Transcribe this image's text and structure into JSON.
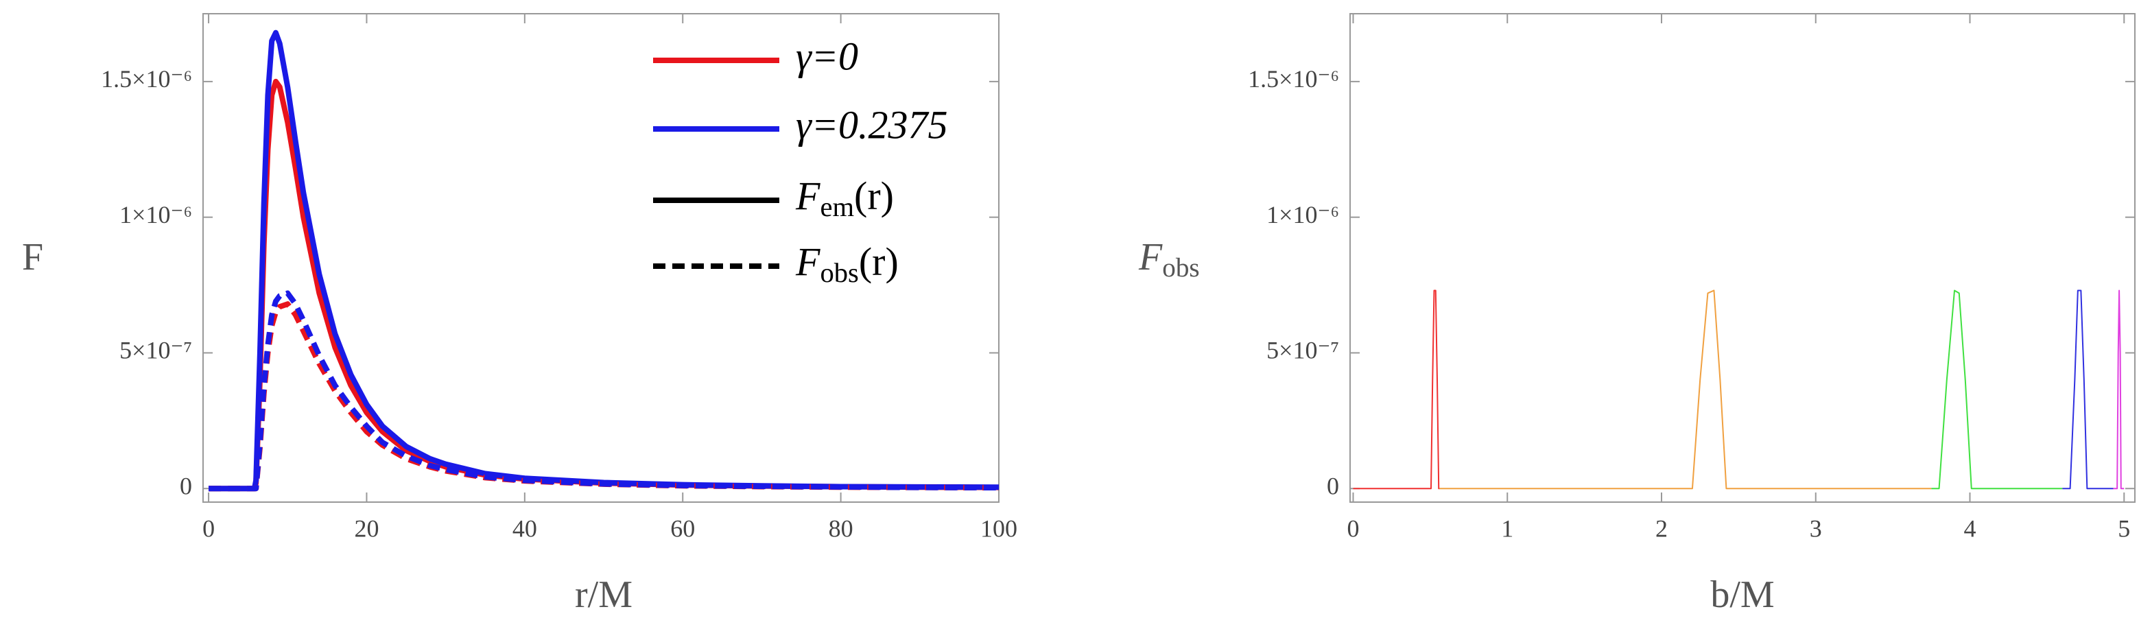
{
  "chart_data": [
    {
      "type": "line",
      "ylabel": "F",
      "xlabel": "r/M",
      "xlim": [
        -0.7,
        100
      ],
      "xticks": [
        0,
        20,
        40,
        60,
        80,
        100
      ],
      "ylim": [
        -5e-08,
        1.75e-06
      ],
      "yticks": [
        0,
        {
          "value": 5e-07,
          "label": "5×10⁻⁷"
        },
        {
          "value": 1e-06,
          "label": "1×10⁻⁶"
        },
        {
          "value": 1.5e-06,
          "label": "1.5×10⁻⁶"
        }
      ],
      "x": [
        0,
        5,
        5.8,
        6,
        6.5,
        7,
        7.5,
        8,
        8.5,
        9,
        10,
        11,
        12,
        14,
        16,
        18,
        20,
        22,
        25,
        28,
        30,
        35,
        40,
        50,
        60,
        70,
        80,
        90,
        100
      ],
      "series": [
        {
          "color": "#e8141c",
          "dash": false,
          "values": [
            0,
            0,
            0,
            2e-08,
            4e-07,
            9e-07,
            1.25e-06,
            1.45e-06,
            1.5e-06,
            1.48e-06,
            1.35e-06,
            1.18e-06,
            1e-06,
            7.2e-07,
            5.2e-07,
            3.8e-07,
            2.8e-07,
            2.1e-07,
            1.4e-07,
            1e-07,
            8e-08,
            5e-08,
            3.5e-08,
            2e-08,
            1.3e-08,
            9e-09,
            7e-09,
            5e-09,
            4e-09
          ]
        },
        {
          "color": "#1a1ae6",
          "dash": false,
          "values": [
            0,
            0,
            0,
            3e-08,
            5e-07,
            1.05e-06,
            1.45e-06,
            1.65e-06,
            1.68e-06,
            1.64e-06,
            1.48e-06,
            1.28e-06,
            1.09e-06,
            7.9e-07,
            5.7e-07,
            4.2e-07,
            3.1e-07,
            2.3e-07,
            1.55e-07,
            1.1e-07,
            9e-08,
            5.5e-08,
            3.8e-08,
            2.2e-08,
            1.4e-08,
            1e-08,
            7e-09,
            6e-09,
            5e-09
          ]
        },
        {
          "color": "#e8141c",
          "dash": true,
          "values": [
            0,
            0,
            0,
            0,
            1.5e-07,
            3.5e-07,
            5e-07,
            6e-07,
            6.5e-07,
            6.7e-07,
            6.8e-07,
            6.4e-07,
            5.8e-07,
            4.6e-07,
            3.6e-07,
            2.8e-07,
            2.1e-07,
            1.6e-07,
            1.1e-07,
            8e-08,
            6.5e-08,
            4e-08,
            2.8e-08,
            1.6e-08,
            1e-08,
            7e-09,
            5e-09,
            4e-09,
            3e-09
          ]
        },
        {
          "color": "#1a1ae6",
          "dash": true,
          "values": [
            0,
            0,
            0,
            0,
            1.7e-07,
            3.8e-07,
            5.3e-07,
            6.4e-07,
            6.9e-07,
            7.1e-07,
            7.2e-07,
            6.8e-07,
            6.2e-07,
            4.9e-07,
            3.8e-07,
            3e-07,
            2.3e-07,
            1.7e-07,
            1.2e-07,
            8.5e-08,
            7e-08,
            4.3e-08,
            3e-08,
            1.7e-08,
            1.1e-08,
            8e-09,
            6e-09,
            4e-09,
            3e-09
          ]
        }
      ],
      "legend": [
        {
          "text": "γ=0",
          "color": "#e8141c",
          "dash": false
        },
        {
          "text": "γ=0.2375",
          "color": "#1a1ae6",
          "dash": false
        },
        {
          "text": [
            "F",
            "em",
            "(r)"
          ],
          "color": "#000000",
          "dash": false
        },
        {
          "text": [
            "F",
            "obs",
            "(r)"
          ],
          "color": "#000000",
          "dash": true
        }
      ]
    },
    {
      "type": "line",
      "ylabel": [
        "F",
        "obs"
      ],
      "xlabel": "b/M",
      "xlim": [
        -0.02,
        5.07
      ],
      "xticks": [
        0,
        1,
        2,
        3,
        4,
        5
      ],
      "ylim": [
        -5e-08,
        1.75e-06
      ],
      "yticks": [
        0,
        {
          "value": 5e-07,
          "label": "5×10⁻⁷"
        },
        {
          "value": 1e-06,
          "label": "1×10⁻⁶"
        },
        {
          "value": 1.5e-06,
          "label": "1.5×10⁻⁶"
        }
      ],
      "series": [
        {
          "color": "#f03030",
          "dash": false,
          "x": [
            0,
            0.505,
            0.515,
            0.525,
            0.535,
            0.545,
            0.555,
            0.56
          ],
          "values": [
            0,
            0,
            4e-07,
            7.3e-07,
            7.3e-07,
            4e-07,
            0,
            0
          ]
        },
        {
          "color": "#f0a040",
          "dash": false,
          "x": [
            0.56,
            2.2,
            2.25,
            2.3,
            2.34,
            2.38,
            2.42,
            3.75
          ],
          "values": [
            0,
            0,
            4e-07,
            7.2e-07,
            7.3e-07,
            4e-07,
            0,
            0
          ]
        },
        {
          "color": "#40e040",
          "dash": false,
          "x": [
            3.75,
            3.8,
            3.85,
            3.9,
            3.93,
            3.97,
            4.01,
            4.6
          ],
          "values": [
            0,
            0,
            4e-07,
            7.3e-07,
            7.2e-07,
            4e-07,
            0,
            0
          ]
        },
        {
          "color": "#3030e0",
          "dash": false,
          "x": [
            4.6,
            4.65,
            4.68,
            4.7,
            4.72,
            4.74,
            4.76,
            4.93
          ],
          "values": [
            0,
            0,
            4e-07,
            7.3e-07,
            7.3e-07,
            4e-07,
            0,
            0
          ]
        },
        {
          "color": "#e040e0",
          "dash": false,
          "x": [
            4.93,
            4.955,
            4.962,
            4.968,
            4.975,
            4.98,
            5.0
          ],
          "values": [
            0,
            0,
            5e-07,
            7.3e-07,
            5e-07,
            0,
            0
          ]
        }
      ]
    }
  ]
}
